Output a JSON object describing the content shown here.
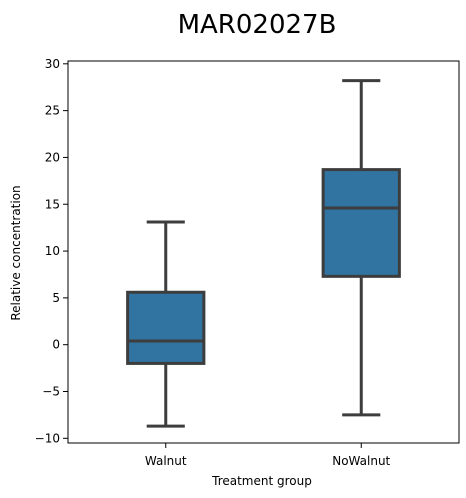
{
  "chart_data": {
    "type": "box",
    "title": "MAR02027B",
    "xlabel": "Treatment group",
    "ylabel": "Relative concentration",
    "categories": [
      "Walnut",
      "NoWalnut"
    ],
    "boxes": [
      {
        "category": "Walnut",
        "whisker_low": -8.7,
        "q1": -2.0,
        "median": 0.4,
        "q3": 5.6,
        "whisker_high": 13.1
      },
      {
        "category": "NoWalnut",
        "whisker_low": -7.5,
        "q1": 7.3,
        "median": 14.6,
        "q3": 18.7,
        "whisker_high": 28.2
      }
    ],
    "yticks": [
      -10,
      -5,
      0,
      5,
      10,
      15,
      20,
      25,
      30
    ],
    "ytick_labels": [
      "−10",
      "−5",
      "0",
      "5",
      "10",
      "15",
      "20",
      "25",
      "30"
    ],
    "ylim": [
      -10.5,
      30.3
    ],
    "box_color": "#3274a1",
    "line_color": "#3d3d3d",
    "grid": false,
    "legend": "none"
  }
}
